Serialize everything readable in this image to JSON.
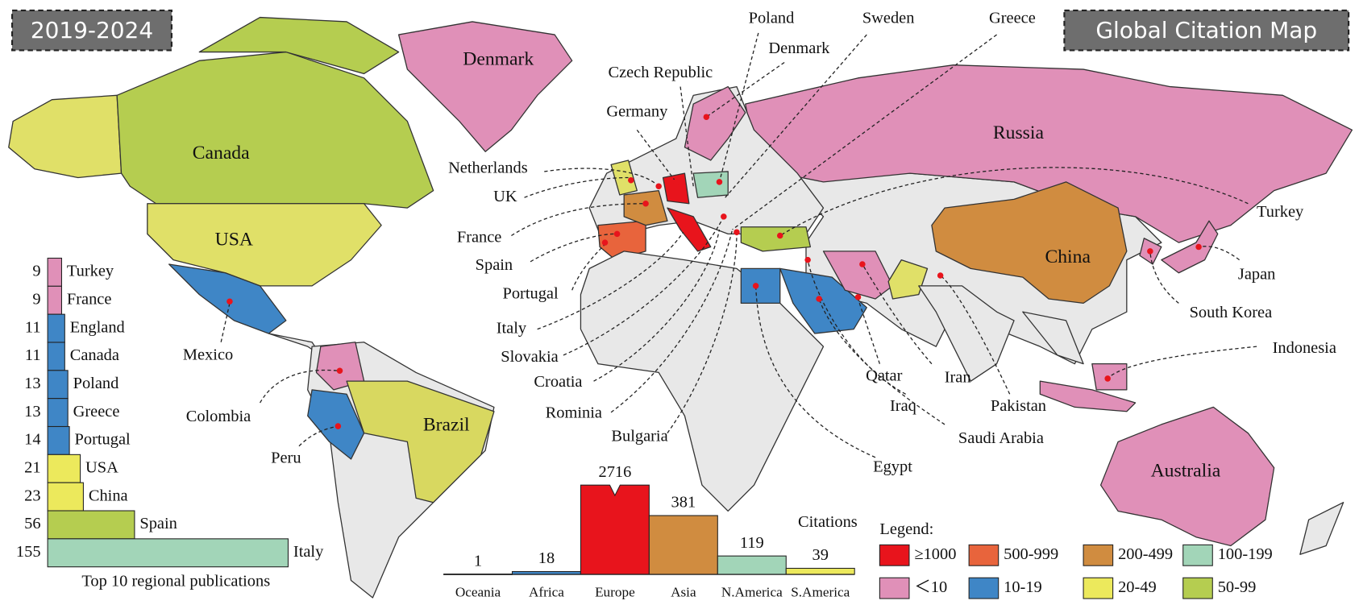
{
  "badges": {
    "period": "2019-2024",
    "title": "Global Citation Map"
  },
  "map": {
    "labels": [
      "Denmark",
      "Canada",
      "USA",
      "Brazil",
      "Russia",
      "China",
      "Australia",
      "Poland",
      "Sweden",
      "Greece",
      "Denmark",
      "Czech Republic",
      "Germany",
      "Netherlands",
      "UK",
      "France",
      "Spain",
      "Portugal",
      "Italy",
      "Slovakia",
      "Croatia",
      "Rominia",
      "Bulgaria",
      "Mexico",
      "Colombia",
      "Peru",
      "Egypt",
      "Saudi Arabia",
      "Iraq",
      "Qatar",
      "Iran",
      "Pakistan",
      "Turkey",
      "Japan",
      "South Korea",
      "Indonesia"
    ]
  },
  "chart_data": [
    {
      "type": "barh",
      "title": "Top 10 regional publications",
      "categories": [
        "Turkey",
        "France",
        "England",
        "Canada",
        "Poland",
        "Greece",
        "Portugal",
        "USA",
        "China",
        "Spain",
        "Italy"
      ],
      "values": [
        9,
        9,
        11,
        11,
        13,
        13,
        14,
        21,
        23,
        56,
        155
      ],
      "colors": [
        "#e090b8",
        "#e090b8",
        "#3f86c6",
        "#3f86c6",
        "#3f86c6",
        "#3f86c6",
        "#3f86c6",
        "#ece95c",
        "#ece95c",
        "#b5cd50",
        "#a2d5b8"
      ]
    },
    {
      "type": "bar",
      "title": "Citations",
      "categories": [
        "Oceania",
        "Africa",
        "Europe",
        "Asia",
        "N.America",
        "S.America"
      ],
      "values": [
        1,
        18,
        2716,
        381,
        119,
        39
      ],
      "colors": [
        "#e090b8",
        "#3f86c6",
        "#e8141c",
        "#d08c40",
        "#a2d5b8",
        "#ece95c"
      ]
    }
  ],
  "legend": {
    "title": "Legend:",
    "items": [
      {
        "label": "≥1000",
        "color": "#e8141c"
      },
      {
        "label": "500-999",
        "color": "#e8643c"
      },
      {
        "label": "200-499",
        "color": "#d08c40"
      },
      {
        "label": "100-199",
        "color": "#a2d5b8"
      },
      {
        "label": "＜10",
        "color": "#e090b8"
      },
      {
        "label": "10-19",
        "color": "#3f86c6"
      },
      {
        "label": "20-49",
        "color": "#ece95c"
      },
      {
        "label": "50-99",
        "color": "#b5cd50"
      }
    ]
  }
}
